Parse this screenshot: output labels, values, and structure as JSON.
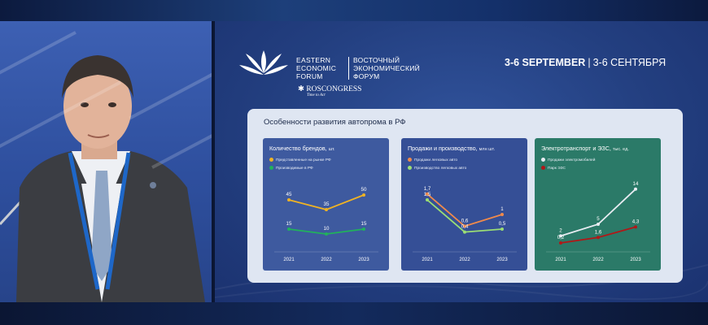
{
  "colors": {
    "bg": "#0d1a3a",
    "slide": "#233f80",
    "panel": "#dfe6f2",
    "card_blue": "#3e5a9f",
    "card_mid": "#354f96",
    "card_green": "#2b7a68",
    "yellow": "#f0b323",
    "green": "#21b25b",
    "orange": "#f08a4b",
    "lightgreen": "#9bde74",
    "white": "#e8ecf2",
    "darkred": "#b01818"
  },
  "logo": {
    "line1": "EASTERN",
    "line2": "ECONOMIC",
    "line3": "FORUM",
    "ru1": "ВОСТОЧНЫЙ",
    "ru2": "ЭКОНОМИЧЕСКИЙ",
    "ru3": "ФОРУМ",
    "roscongress": "ROSCONGRESS",
    "tagline": "Time to Act"
  },
  "header": {
    "date_en": "3-6 SEPTEMBER",
    "separator": "|",
    "date_ru": "3-6 СЕНТЯБРЯ"
  },
  "panel": {
    "title": "Особенности развития автопрома в РФ"
  },
  "chart_data": [
    {
      "type": "line",
      "title": "Количество брендов,",
      "unit": "шт.",
      "categories": [
        "2021",
        "2022",
        "2023"
      ],
      "series": [
        {
          "name": "Представленные на рынке РФ",
          "color": "#f0b323",
          "values": [
            45,
            35,
            50
          ],
          "labels": [
            "45",
            "35",
            "50"
          ]
        },
        {
          "name": "Производимые в РФ",
          "color": "#21b25b",
          "values": [
            15,
            10,
            15
          ],
          "labels": [
            "15",
            "10",
            "15"
          ]
        }
      ],
      "ylim": [
        0,
        60
      ]
    },
    {
      "type": "line",
      "title": "Продажи и производство,",
      "unit": "млн шт.",
      "categories": [
        "2021",
        "2022",
        "2023"
      ],
      "series": [
        {
          "name": "Продажи легковых авто",
          "color": "#f08a4b",
          "values": [
            1.7,
            0.6,
            1
          ],
          "labels": [
            "1,7",
            "0,6",
            "1"
          ]
        },
        {
          "name": "Производство легковых авто",
          "color": "#9bde74",
          "values": [
            1.5,
            0.4,
            0.5
          ],
          "labels": [
            "1,5",
            "0,4",
            "0,5"
          ]
        }
      ],
      "ylim": [
        0,
        2
      ]
    },
    {
      "type": "line",
      "title": "Электротранспорт и ЭЗС,",
      "unit": "тыс. ед.",
      "categories": [
        "2021",
        "2022",
        "2023"
      ],
      "series": [
        {
          "name": "Продажи электромобилей",
          "color": "#e8ecf2",
          "values": [
            2,
            5,
            14
          ],
          "labels": [
            "2",
            "5",
            "14"
          ]
        },
        {
          "name": "Парк ЭЗС",
          "color": "#b01818",
          "values": [
            0.2,
            1.6,
            4.3
          ],
          "labels": [
            "0,2",
            "1,6",
            "4,3"
          ]
        }
      ],
      "ylim": [
        0,
        15
      ]
    }
  ]
}
